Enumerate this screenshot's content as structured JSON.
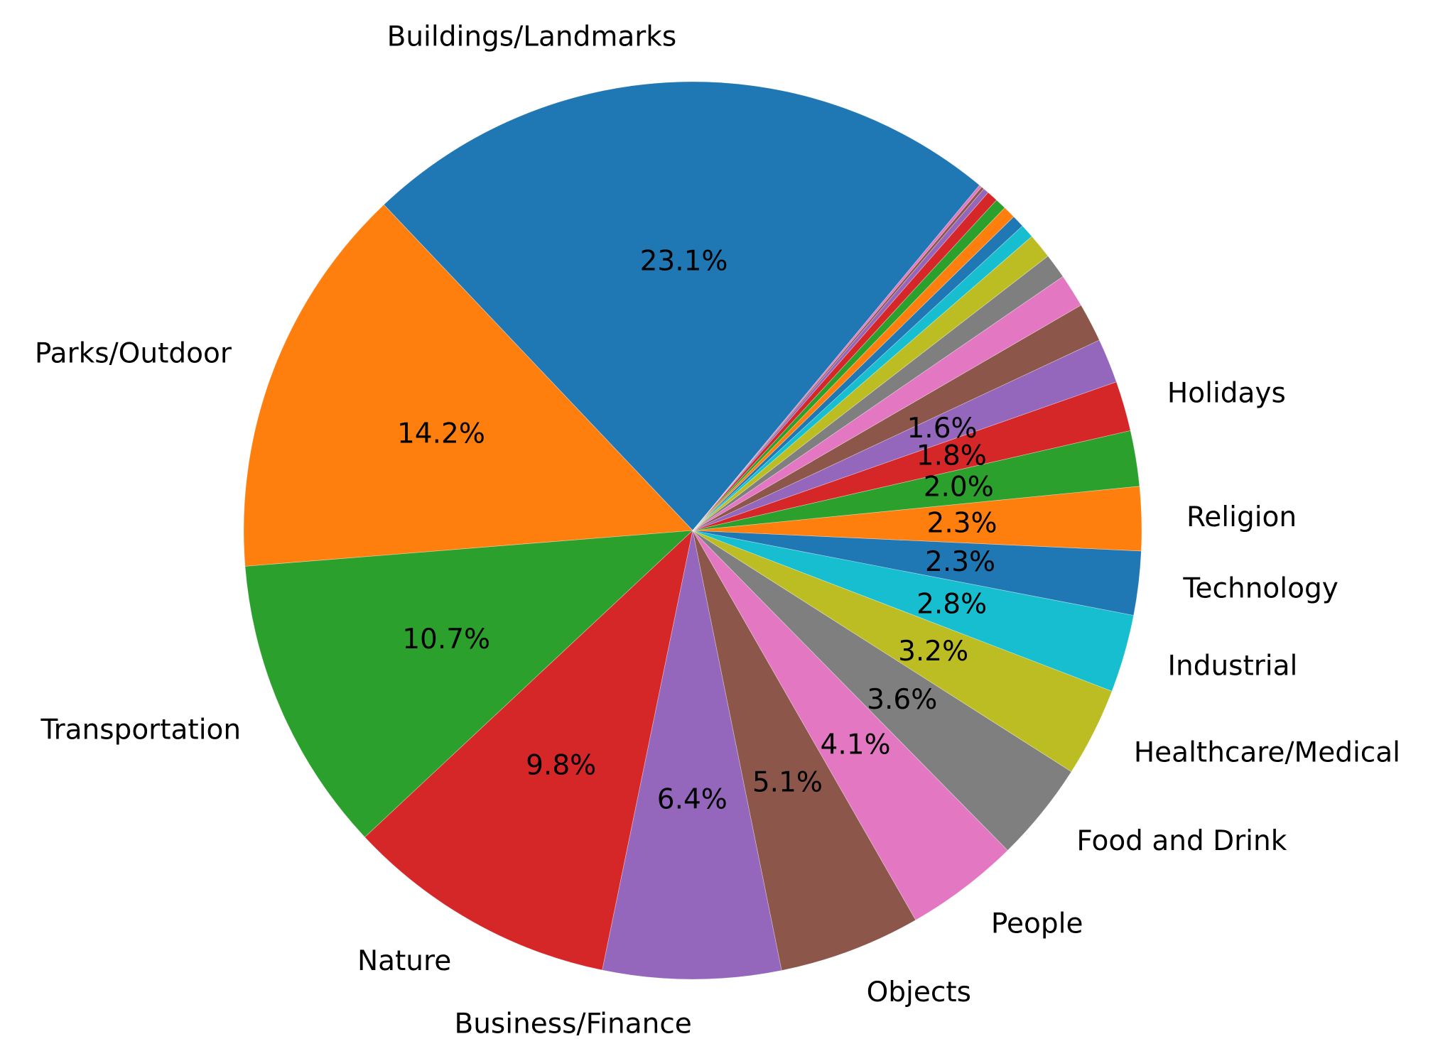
{
  "chart_data": {
    "type": "pie",
    "title": "",
    "categories": [
      "Buildings/Landmarks",
      "Parks/Outdoor",
      "Transportation",
      "Nature",
      "Business/Finance",
      "Objects",
      "People",
      "Food and Drink",
      "Healthcare/Medical",
      "Industrial",
      "Technology",
      "Religion",
      "",
      "Holidays",
      "",
      "",
      "",
      "",
      "",
      "",
      "",
      "",
      "",
      "",
      "",
      "",
      ""
    ],
    "values": [
      23.1,
      14.2,
      10.7,
      9.8,
      6.4,
      5.1,
      4.1,
      3.6,
      3.2,
      2.8,
      2.3,
      2.3,
      2.0,
      1.8,
      1.6,
      1.4,
      1.2,
      0.9,
      0.9,
      0.5,
      0.45,
      0.45,
      0.4,
      0.4,
      0.2,
      0.1,
      0.1
    ],
    "pct_labels": [
      "23.1%",
      "14.2%",
      "10.7%",
      "9.8%",
      "6.4%",
      "5.1%",
      "4.1%",
      "3.6%",
      "3.2%",
      "2.8%",
      "2.3%",
      "2.3%",
      "2.0%",
      "1.8%",
      "1.6%",
      "",
      "",
      "",
      "",
      "",
      "",
      "",
      "",
      "",
      "",
      "",
      ""
    ],
    "colors": [
      "#1f77b4",
      "#ff7f0e",
      "#2ca02c",
      "#d62728",
      "#9467bd",
      "#8c564b",
      "#e377c2",
      "#7f7f7f",
      "#bcbd22",
      "#17becf"
    ],
    "direction": "counterclockwise",
    "legend": "none"
  }
}
